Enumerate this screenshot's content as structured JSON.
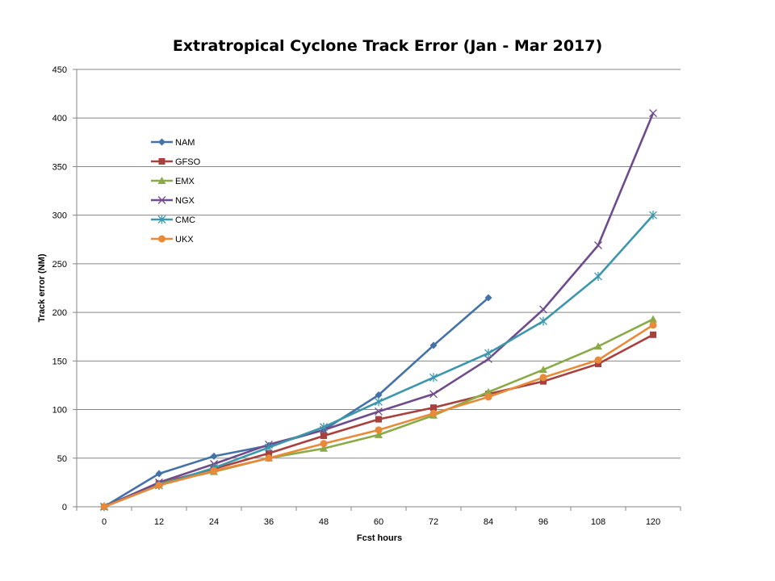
{
  "chart_data": {
    "type": "line",
    "title": "Extratropical Cyclone Track Error (Jan - Mar 2017)",
    "xlabel": "Fcst hours",
    "ylabel": "Track error  (NM)",
    "categories": [
      "0",
      "12",
      "24",
      "36",
      "48",
      "60",
      "72",
      "84",
      "96",
      "108",
      "120"
    ],
    "ylim": [
      0,
      450
    ],
    "yticks": [
      0,
      50,
      100,
      150,
      200,
      250,
      300,
      350,
      400,
      450
    ],
    "grid": "horizontal",
    "legend_position": "inside-top-left",
    "series": [
      {
        "name": "NAM",
        "color": "#4472A8",
        "marker": "diamond",
        "values": [
          0,
          34,
          52,
          63,
          79,
          115,
          166,
          215,
          null,
          null,
          null
        ]
      },
      {
        "name": "GFSO",
        "color": "#A8413D",
        "marker": "square",
        "values": [
          0,
          24,
          39,
          55,
          73,
          90,
          102,
          116,
          129,
          147,
          177
        ]
      },
      {
        "name": "EMX",
        "color": "#8AAA48",
        "marker": "triangle",
        "values": [
          0,
          24,
          36,
          50,
          60,
          74,
          94,
          118,
          141,
          165,
          193
        ]
      },
      {
        "name": "NGX",
        "color": "#6E4C8C",
        "marker": "x",
        "values": [
          0,
          25,
          44,
          64,
          79,
          98,
          116,
          152,
          203,
          269,
          405
        ]
      },
      {
        "name": "CMC",
        "color": "#3D97AC",
        "marker": "star",
        "values": [
          0,
          22,
          40,
          61,
          82,
          108,
          133,
          158,
          191,
          237,
          300
        ]
      },
      {
        "name": "UKX",
        "color": "#E88A37",
        "marker": "circle",
        "values": [
          0,
          22,
          37,
          50,
          65,
          79,
          96,
          113,
          133,
          151,
          187
        ]
      }
    ]
  }
}
